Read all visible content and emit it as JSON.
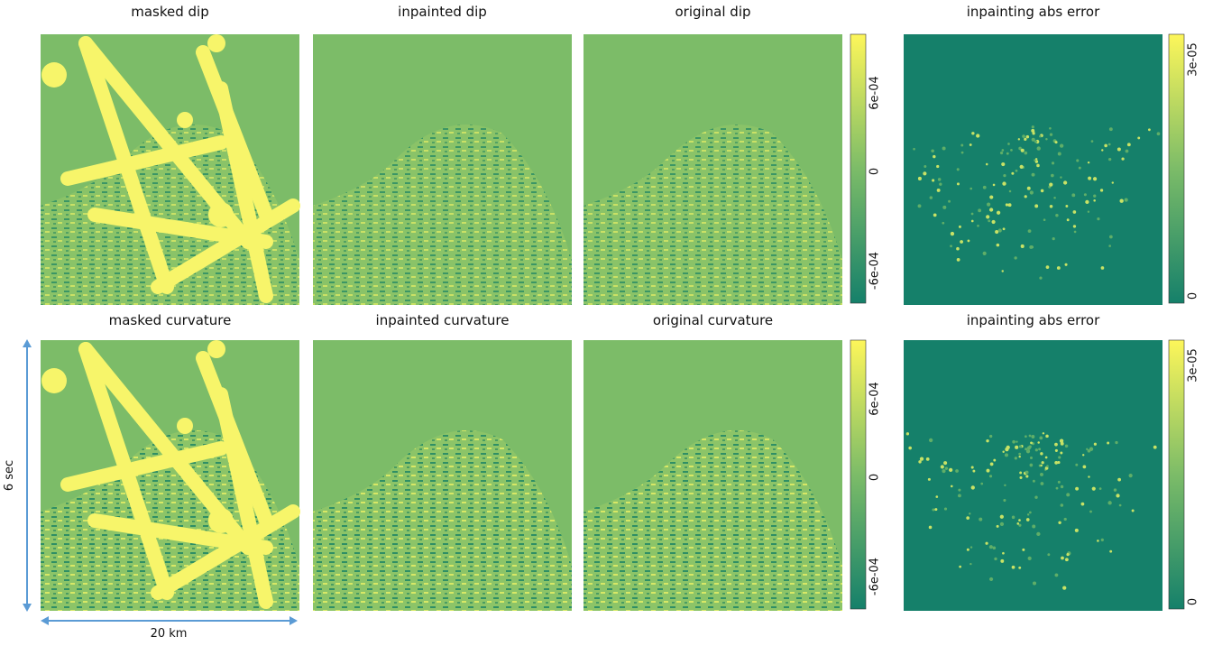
{
  "rows": [
    {
      "panels": [
        {
          "title": "masked  dip"
        },
        {
          "title": "inpainted  dip"
        },
        {
          "title": "original  dip"
        },
        {
          "title": "inpainting abs error"
        }
      ],
      "colorbars": [
        {
          "ticks": [
            "6e-04",
            "0",
            "-6e-04"
          ]
        },
        {
          "ticks": [
            "3e-05",
            "0"
          ]
        }
      ]
    },
    {
      "panels": [
        {
          "title": "masked  curvature"
        },
        {
          "title": "inpainted  curvature"
        },
        {
          "title": "original  curvature"
        },
        {
          "title": "inpainting abs error"
        }
      ],
      "colorbars": [
        {
          "ticks": [
            "6e-04",
            "0",
            "-6e-04"
          ]
        },
        {
          "ticks": [
            "3e-05",
            "0"
          ]
        }
      ]
    }
  ],
  "scale": {
    "vertical": "6 sec",
    "horizontal": "20 km"
  }
}
